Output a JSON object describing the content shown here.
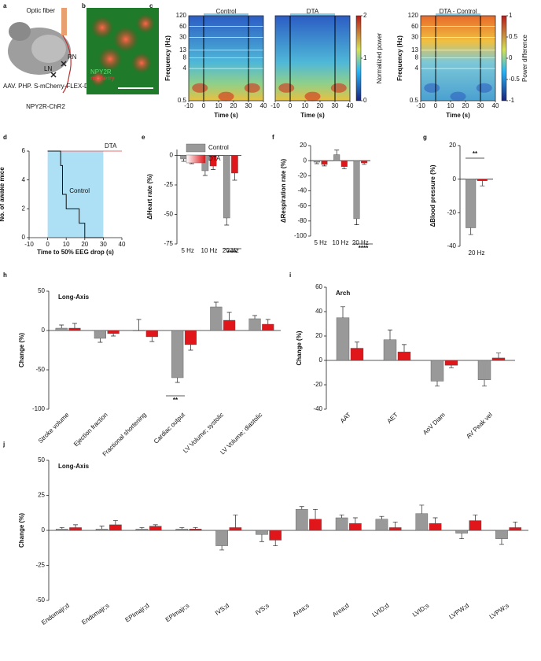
{
  "panel_a": {
    "panel": "a",
    "fiber": "Optic fiber",
    "right_node": "RN",
    "left_node": "LN",
    "virus": "AAV. PHP. S-mCherry-FLEX-DTA",
    "mouse": "NPY2R-ChR2"
  },
  "panel_b": {
    "panel": "b",
    "green_label": "NPY2R",
    "red_label": "mCherry"
  },
  "chart_data": [
    {
      "type": "heatmap",
      "panel": "c",
      "title": "Control",
      "ylabel": "Frequency (Hz)",
      "xlabel": "Time (s)",
      "log_y": true,
      "ylim": [
        0.5,
        120
      ],
      "yticks": [
        0.5,
        4,
        8,
        13,
        30,
        60,
        120
      ],
      "xlim": [
        -10,
        40
      ],
      "xticks": [
        -10,
        0,
        10,
        20,
        30,
        40
      ],
      "stimulus": [
        0,
        30
      ]
    },
    {
      "type": "heatmap",
      "title": "DTA",
      "xlabel": "Time (s)",
      "log_y": true,
      "ylim": [
        0.5,
        120
      ],
      "xlim": [
        -10,
        40
      ],
      "xticks": [
        -10,
        0,
        10,
        20,
        30,
        40
      ],
      "stimulus": [
        0,
        30
      ],
      "colorbar": {
        "label": "Normalized power",
        "lim": [
          0,
          2
        ],
        "ticks": [
          0,
          1,
          2
        ]
      }
    },
    {
      "type": "heatmap",
      "title": "DTA - Control",
      "ylabel": "Frequency (Hz)",
      "xlabel": "Time (s)",
      "log_y": true,
      "ylim": [
        0.5,
        120
      ],
      "yticks": [
        0.5,
        4,
        8,
        13,
        30,
        60,
        120
      ],
      "xlim": [
        -10,
        40
      ],
      "xticks": [
        -10,
        0,
        10,
        20,
        30,
        40
      ],
      "stimulus": [
        0,
        30
      ],
      "colorbar": {
        "label": "Power difference",
        "lim": [
          -1,
          1
        ],
        "ticks": [
          -1,
          -0.5,
          0,
          0.5,
          1
        ]
      }
    },
    {
      "type": "step",
      "panel": "d",
      "ylabel": "No. of awake mice",
      "xlabel": "Time to 50% EEG drop (s)",
      "xlim": [
        -10,
        40
      ],
      "xticks": [
        -10,
        0,
        10,
        20,
        30,
        40
      ],
      "ylim": [
        0,
        6
      ],
      "yticks": [
        0,
        2,
        4,
        6
      ],
      "stimulus": [
        0,
        30
      ],
      "series": [
        {
          "name": "DTA",
          "color": "#e07070",
          "x": [
            0,
            40
          ],
          "values": [
            6,
            6
          ]
        },
        {
          "name": "Control",
          "color": "#111111",
          "x": [
            0,
            7,
            7,
            8,
            8,
            10,
            10,
            17,
            17,
            20,
            20,
            30
          ],
          "values": [
            6,
            6,
            5,
            5,
            3,
            3,
            2,
            2,
            1,
            1,
            0,
            0
          ]
        }
      ]
    },
    {
      "type": "bar",
      "panel": "e",
      "ylabel": "ΔHeart rate (%)",
      "categories": [
        "5 Hz",
        "10 Hz",
        "20 Hz"
      ],
      "ylim": [
        -75,
        5
      ],
      "yticks": [
        0,
        -25,
        -50,
        -75
      ],
      "legend": true,
      "annotations": [
        "****"
      ],
      "series": [
        {
          "name": "Control",
          "color": "#999999",
          "values": [
            -3,
            -13,
            -53
          ],
          "errors": [
            2,
            4,
            6
          ]
        },
        {
          "name": "DTA",
          "color": "#e0161b",
          "values": [
            -5,
            -9,
            -15
          ],
          "errors": [
            2,
            3,
            6
          ]
        }
      ]
    },
    {
      "type": "bar",
      "panel": "f",
      "ylabel": "ΔRespiration rate (%)",
      "categories": [
        "5 Hz",
        "10 Hz",
        "20 Hz"
      ],
      "ylim": [
        -100,
        20
      ],
      "yticks": [
        20,
        0,
        -20,
        -40,
        -60,
        -80,
        -100
      ],
      "annotations": [
        "****"
      ],
      "series": [
        {
          "name": "Control",
          "color": "#999999",
          "values": [
            -2,
            8,
            -77
          ],
          "errors": [
            2,
            6,
            8
          ]
        },
        {
          "name": "DTA",
          "color": "#e0161b",
          "values": [
            -5,
            -8,
            -3
          ],
          "errors": [
            2,
            3,
            2
          ]
        }
      ]
    },
    {
      "type": "bar",
      "panel": "g",
      "ylabel": "ΔBlood pressure (%)",
      "categories": [
        "20 Hz"
      ],
      "ylim": [
        -40,
        20
      ],
      "yticks": [
        20,
        0,
        -20,
        -40
      ],
      "annotations": [
        "**"
      ],
      "series": [
        {
          "name": "Control",
          "color": "#999999",
          "values": [
            -29
          ],
          "errors": [
            4
          ]
        },
        {
          "name": "DTA",
          "color": "#e0161b",
          "values": [
            -1
          ],
          "errors": [
            3
          ]
        }
      ]
    },
    {
      "type": "bar",
      "panel": "h",
      "title": "Long-Axis",
      "ylabel": "Change (%)",
      "categories": [
        "Stroke volume",
        "Ejection fraction",
        "Fractional shortening",
        "Cardiac output",
        "LV Volume; systolic",
        "LV Volume; diastolic"
      ],
      "ylim": [
        -100,
        50
      ],
      "yticks": [
        50,
        0,
        -50,
        -100
      ],
      "annotations": [
        "**"
      ],
      "series": [
        {
          "name": "Control",
          "color": "#999999",
          "values": [
            3,
            -10,
            0,
            -60,
            30,
            15
          ],
          "errors": [
            4,
            5,
            14,
            6,
            6,
            4
          ]
        },
        {
          "name": "DTA",
          "color": "#e0161b",
          "values": [
            3,
            -4,
            -8,
            -18,
            13,
            8
          ],
          "errors": [
            6,
            3,
            6,
            7,
            10,
            6
          ]
        }
      ]
    },
    {
      "type": "bar",
      "panel": "i",
      "title": "Arch",
      "ylabel": "Change (%)",
      "categories": [
        "AAT",
        "AET",
        "AoV Diam",
        "AV Peak vel"
      ],
      "ylim": [
        -40,
        60
      ],
      "yticks": [
        -40,
        -20,
        0,
        20,
        40,
        60
      ],
      "series": [
        {
          "name": "Control",
          "color": "#999999",
          "values": [
            35,
            17,
            -17,
            -16
          ],
          "errors": [
            9,
            8,
            4,
            5
          ]
        },
        {
          "name": "DTA",
          "color": "#e0161b",
          "values": [
            10,
            7,
            -4,
            2
          ],
          "errors": [
            5,
            6,
            2,
            4
          ]
        }
      ]
    },
    {
      "type": "bar",
      "panel": "j",
      "title": "Long-Axis",
      "ylabel": "Change (%)",
      "categories": [
        "Endomajr;d",
        "Endomajr;s",
        "EPImajr;d",
        "EPImajr;s",
        "IVS;d",
        "IVS;s",
        "Area;s",
        "Area;d",
        "LVID;d",
        "LVID;s",
        "LVPW;d",
        "LVPW;s"
      ],
      "ylim": [
        -50,
        50
      ],
      "yticks": [
        50,
        25,
        0,
        -25,
        -50
      ],
      "series": [
        {
          "name": "Control",
          "color": "#999999",
          "values": [
            1,
            1,
            1,
            1,
            -11,
            -3,
            15,
            9,
            8,
            12,
            -2,
            -6
          ],
          "errors": [
            1,
            2,
            1,
            1,
            3,
            5,
            2,
            2,
            2,
            6,
            4,
            4
          ]
        },
        {
          "name": "DTA",
          "color": "#e0161b",
          "values": [
            2,
            4,
            3,
            1,
            2,
            -7,
            8,
            5,
            2,
            5,
            7,
            2
          ],
          "errors": [
            2,
            3,
            1,
            1,
            9,
            4,
            7,
            4,
            4,
            4,
            4,
            4
          ]
        }
      ]
    }
  ]
}
